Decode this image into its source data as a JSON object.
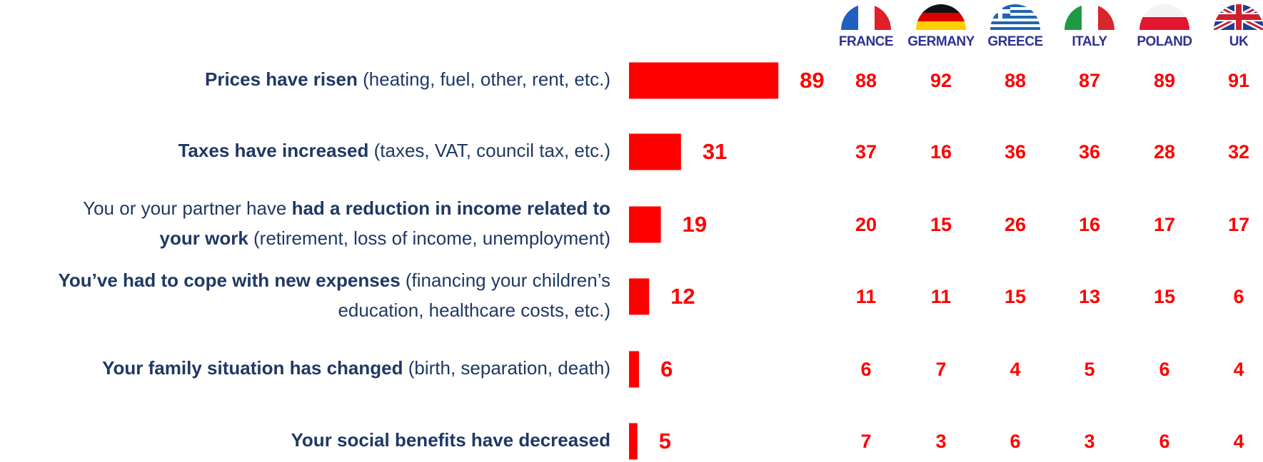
{
  "chart_data": {
    "type": "bar",
    "categories": [
      [
        [
          {
            "text": "Prices have risen",
            "bold": true
          },
          {
            "text": " (heating, fuel, other, rent, etc.)",
            "bold": false
          }
        ]
      ],
      [
        [
          {
            "text": "Taxes have increased",
            "bold": true
          },
          {
            "text": " (taxes, VAT, council tax, etc.)",
            "bold": false
          }
        ]
      ],
      [
        [
          {
            "text": "You or your partner have ",
            "bold": false
          },
          {
            "text": "had a reduction in income related to",
            "bold": true
          }
        ],
        [
          {
            "text": "your work",
            "bold": true
          },
          {
            "text": " (retirement, loss of income, unemployment)",
            "bold": false
          }
        ]
      ],
      [
        [
          {
            "text": "You’ve had to cope with new expenses",
            "bold": true
          },
          {
            "text": " (financing your children’s",
            "bold": false
          }
        ],
        [
          {
            "text": "education, healthcare costs, etc.)",
            "bold": false
          }
        ]
      ],
      [
        [
          {
            "text": "Your family situation has changed",
            "bold": true
          },
          {
            "text": " (birth, separation, death)",
            "bold": false
          }
        ]
      ],
      [
        [
          {
            "text": "Your social benefits have decreased",
            "bold": true
          }
        ]
      ]
    ],
    "values": [
      89,
      31,
      19,
      12,
      6,
      5
    ],
    "color": "#ff0000",
    "xlim": [
      0,
      100
    ],
    "series": [
      {
        "name": "FRANCE",
        "color": "#ff0000",
        "values": [
          88,
          37,
          20,
          11,
          6,
          7
        ]
      },
      {
        "name": "GERMANY",
        "color": "#ff0000",
        "values": [
          92,
          16,
          15,
          11,
          7,
          3
        ]
      },
      {
        "name": "GREECE",
        "color": "#ff0000",
        "values": [
          88,
          36,
          26,
          15,
          4,
          6
        ]
      },
      {
        "name": "ITALY",
        "color": "#ff0000",
        "values": [
          87,
          36,
          16,
          13,
          5,
          3
        ]
      },
      {
        "name": "POLAND",
        "color": "#ff0000",
        "values": [
          89,
          28,
          17,
          15,
          6,
          6
        ]
      },
      {
        "name": "UK",
        "color": "#ff0000",
        "values": [
          91,
          32,
          17,
          6,
          4,
          4
        ]
      }
    ]
  }
}
